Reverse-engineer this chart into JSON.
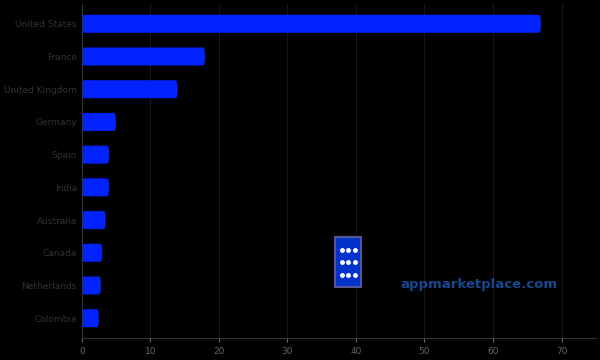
{
  "categories": [
    "United States",
    "France",
    "United Kingdom",
    "Germany",
    "Spain",
    "India",
    "Australia",
    "Canada",
    "Netherlands",
    "Colombia"
  ],
  "values": [
    67,
    18,
    14,
    5,
    4,
    4,
    3.5,
    3,
    2.8,
    2.5
  ],
  "bar_color": "#0022ff",
  "background_color": "#000000",
  "text_color": "#666666",
  "xlim": [
    0,
    75
  ],
  "xticks": [
    0,
    10,
    20,
    30,
    40,
    50,
    60,
    70
  ],
  "bar_height": 0.55,
  "watermark_text": "appmarketplace.com",
  "figsize": [
    6.0,
    3.6
  ],
  "dpi": 100,
  "icon_color": "#0033cc",
  "watermark_color": "#1a4fa0"
}
